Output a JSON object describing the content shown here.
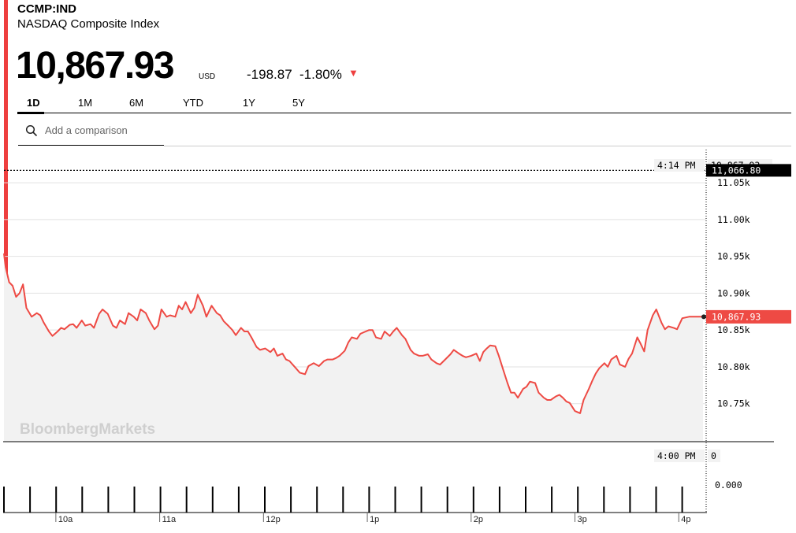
{
  "header": {
    "ticker": "CCMP:IND",
    "name": "NASDAQ Composite Index",
    "price": "10,867.93",
    "currency": "USD",
    "change": "-198.87",
    "change_pct": "-1.80%",
    "arrow": "▼"
  },
  "tabs": [
    {
      "label": "1D",
      "active": true
    },
    {
      "label": "1M",
      "active": false
    },
    {
      "label": "6M",
      "active": false
    },
    {
      "label": "YTD",
      "active": false
    },
    {
      "label": "1Y",
      "active": false
    },
    {
      "label": "5Y",
      "active": false
    }
  ],
  "search": {
    "placeholder": "Add a comparison"
  },
  "colors": {
    "line": "#ee4a44",
    "accent": "#ee3f3f",
    "area": "#f2f2f2",
    "grid": "#e2e2e2"
  },
  "chart_data": {
    "type": "area",
    "watermark": "BloombergMarkets",
    "hover": {
      "time": "4:14 PM",
      "value": "10,867.93"
    },
    "previous_close": {
      "label": "11,066.80",
      "value": 11066.8
    },
    "last": {
      "label": "10,867.93",
      "value": 10867.93
    },
    "ylim": [
      10708,
      11095
    ],
    "yticks": [
      {
        "value": 11050,
        "label": "11.05k"
      },
      {
        "value": 11000,
        "label": "11.00k"
      },
      {
        "value": 10950,
        "label": "10.95k"
      },
      {
        "value": 10900,
        "label": "10.90k"
      },
      {
        "value": 10850,
        "label": "10.85k"
      },
      {
        "value": 10800,
        "label": "10.80k"
      },
      {
        "value": 10750,
        "label": "10.75k"
      }
    ],
    "x_start": "9:30",
    "x_end": "16:14",
    "xticks": [
      {
        "time": "10:00",
        "label": "10a"
      },
      {
        "time": "11:00",
        "label": "11a"
      },
      {
        "time": "12:00",
        "label": "12p"
      },
      {
        "time": "13:00",
        "label": "1p"
      },
      {
        "time": "14:00",
        "label": "2p"
      },
      {
        "time": "15:00",
        "label": "3p"
      },
      {
        "time": "16:00",
        "label": "4p"
      }
    ],
    "series": [
      {
        "x": [
          "9:30",
          "9:31",
          "9:33",
          "9:35",
          "9:37",
          "9:39",
          "9:41",
          "9:43",
          "9:46",
          "9:49",
          "9:51",
          "9:53",
          "9:56",
          "9:58",
          "10:01",
          "10:03",
          "10:05",
          "10:08",
          "10:10",
          "10:12",
          "10:15",
          "10:17",
          "10:20",
          "10:22",
          "10:25",
          "10:27",
          "10:30",
          "10:33",
          "10:35",
          "10:37",
          "10:40",
          "10:42",
          "10:45",
          "10:47",
          "10:49",
          "10:52",
          "10:54",
          "10:57",
          "10:59",
          "11:01",
          "11:04",
          "11:06",
          "11:09",
          "11:11",
          "11:13",
          "11:15",
          "11:18",
          "11:20",
          "11:22",
          "11:25",
          "11:27",
          "11:30",
          "11:33",
          "11:35",
          "11:37",
          "11:40",
          "11:42",
          "11:44",
          "11:47",
          "11:49",
          "11:51",
          "11:53",
          "11:56",
          "11:58",
          "12:01",
          "12:04",
          "12:06",
          "12:08",
          "12:11",
          "12:13",
          "12:15",
          "12:18",
          "12:21",
          "12:24",
          "12:26",
          "12:29",
          "12:32",
          "12:35",
          "12:37",
          "12:40",
          "12:42",
          "12:44",
          "12:47",
          "12:49",
          "12:51",
          "12:54",
          "12:56",
          "12:58",
          "13:01",
          "13:03",
          "13:05",
          "13:08",
          "13:10",
          "13:13",
          "13:15",
          "13:17",
          "13:20",
          "13:22",
          "13:25",
          "13:27",
          "13:30",
          "13:32",
          "13:35",
          "13:37",
          "13:40",
          "13:42",
          "13:45",
          "13:48",
          "13:50",
          "13:53",
          "13:55",
          "13:57",
          "14:00",
          "14:03",
          "14:05",
          "14:07",
          "14:09",
          "14:11",
          "14:14",
          "14:16",
          "14:18",
          "14:21",
          "14:23",
          "14:25",
          "14:27",
          "14:30",
          "14:32",
          "14:34",
          "14:37",
          "14:39",
          "14:42",
          "14:44",
          "14:46",
          "14:49",
          "14:51",
          "14:53",
          "14:55",
          "14:57",
          "15:00",
          "15:03",
          "15:05",
          "15:08",
          "15:10",
          "15:12",
          "15:14",
          "15:17",
          "15:19",
          "15:21",
          "15:24",
          "15:26",
          "15:29",
          "15:31",
          "15:33",
          "15:36",
          "15:38",
          "15:40",
          "15:42",
          "15:45",
          "15:47",
          "15:50",
          "15:52",
          "15:54",
          "15:57",
          "15:59",
          "16:02",
          "16:06",
          "16:14"
        ],
        "values": [
          10954,
          10935,
          10915,
          10910,
          10895,
          10900,
          10912,
          10880,
          10868,
          10873,
          10870,
          10860,
          10848,
          10842,
          10848,
          10853,
          10851,
          10857,
          10858,
          10853,
          10863,
          10856,
          10858,
          10853,
          10872,
          10878,
          10872,
          10856,
          10853,
          10863,
          10858,
          10873,
          10868,
          10863,
          10878,
          10873,
          10863,
          10851,
          10856,
          10878,
          10868,
          10870,
          10868,
          10883,
          10878,
          10888,
          10873,
          10880,
          10898,
          10883,
          10868,
          10883,
          10873,
          10870,
          10862,
          10855,
          10850,
          10843,
          10853,
          10848,
          10848,
          10840,
          10827,
          10823,
          10825,
          10820,
          10825,
          10815,
          10818,
          10810,
          10808,
          10800,
          10792,
          10790,
          10801,
          10805,
          10801,
          10808,
          10810,
          10810,
          10812,
          10815,
          10822,
          10833,
          10840,
          10838,
          10845,
          10847,
          10850,
          10850,
          10840,
          10838,
          10848,
          10842,
          10848,
          10853,
          10843,
          10838,
          10823,
          10818,
          10815,
          10815,
          10817,
          10810,
          10805,
          10803,
          10810,
          10817,
          10823,
          10818,
          10815,
          10813,
          10815,
          10818,
          10808,
          10820,
          10825,
          10829,
          10828,
          10815,
          10800,
          10778,
          10765,
          10765,
          10758,
          10770,
          10773,
          10780,
          10778,
          10765,
          10758,
          10755,
          10755,
          10760,
          10762,
          10758,
          10753,
          10751,
          10740,
          10737,
          10755,
          10770,
          10781,
          10791,
          10798,
          10805,
          10800,
          10810,
          10815,
          10803,
          10800,
          10811,
          10818,
          10840,
          10831,
          10821,
          10850,
          10870,
          10878,
          10860,
          10851,
          10855,
          10853,
          10851,
          10866,
          10868,
          10868
        ]
      }
    ],
    "volume": {
      "time": "4:00 PM",
      "value": "0",
      "axis_label": "0.000"
    }
  }
}
